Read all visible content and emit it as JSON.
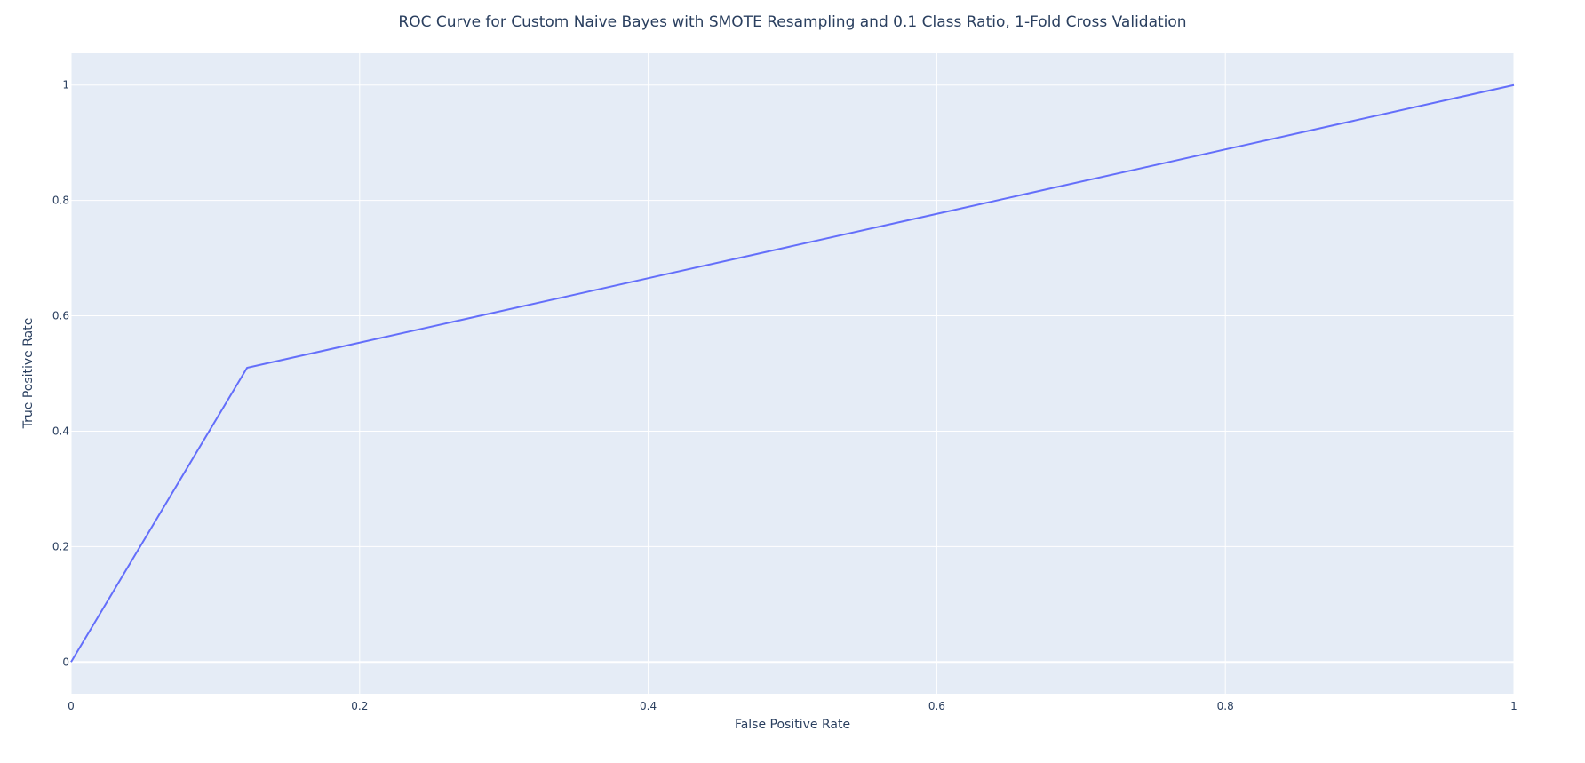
{
  "chart_data": {
    "type": "line",
    "title": "ROC Curve for Custom Naive Bayes with SMOTE Resampling and 0.1 Class Ratio, 1-Fold Cross Validation",
    "xlabel": "False Positive Rate",
    "ylabel": "True Positive Rate",
    "xlim": [
      0,
      1
    ],
    "ylim": [
      -0.055,
      1.055
    ],
    "x_ticks": [
      0,
      0.2,
      0.4,
      0.6,
      0.8,
      1
    ],
    "x_tick_labels": [
      "0",
      "0.2",
      "0.4",
      "0.6",
      "0.8",
      "1"
    ],
    "y_ticks": [
      0,
      0.2,
      0.4,
      0.6,
      0.8,
      1
    ],
    "y_tick_labels": [
      "0",
      "0.2",
      "0.4",
      "0.6",
      "0.8",
      "1"
    ],
    "grid": true,
    "legend": "none",
    "series": [
      {
        "x": [
          0,
          0.122,
          1
        ],
        "y": [
          0,
          0.51,
          1
        ]
      }
    ]
  },
  "colors": {
    "plot_background": "#e5ecf6",
    "grid": "#ffffff",
    "line": "#636efa",
    "text": "#2a3f5f"
  }
}
